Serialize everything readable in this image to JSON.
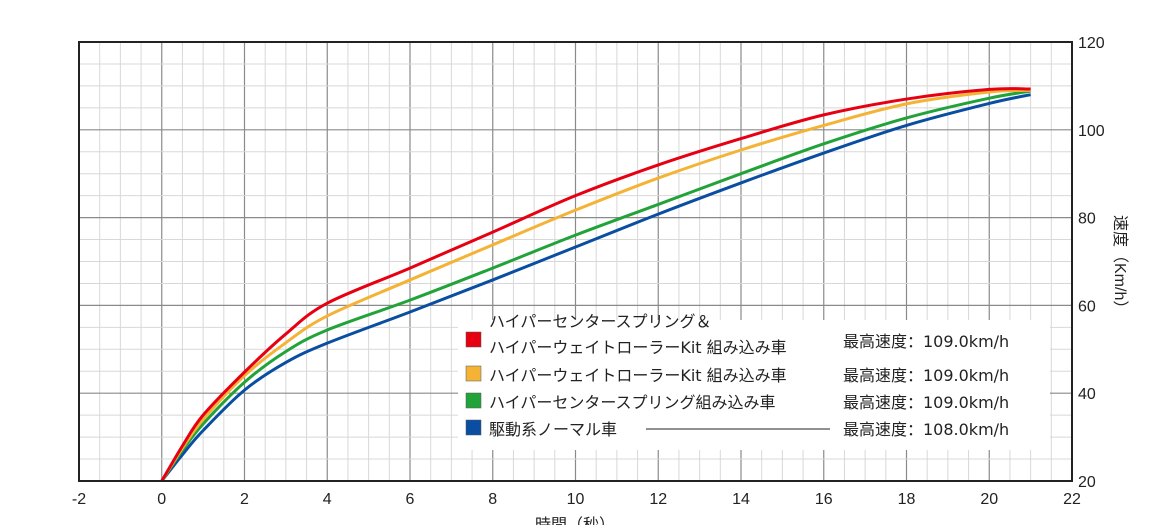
{
  "chart_data": {
    "type": "line",
    "xlabel": "時間（秒）",
    "ylabel": "速度（Km/h）",
    "xlim": [
      -2,
      22
    ],
    "ylim": [
      20,
      120
    ],
    "xticks": [
      -2,
      0,
      2,
      4,
      6,
      8,
      10,
      12,
      14,
      16,
      18,
      20,
      22
    ],
    "yticks": [
      20,
      40,
      60,
      80,
      100,
      120
    ],
    "grid": true,
    "legend_placement": "bottom-right",
    "series": [
      {
        "name_lines": [
          "ハイパーセンタースプリング＆",
          "ハイパーウェイトローラーKit 組み込み車"
        ],
        "max_speed": "最高速度：109.0km/h",
        "color": "#e60012",
        "x": [
          0,
          0.5,
          1,
          2,
          3,
          4,
          6,
          8,
          10,
          12,
          14,
          16,
          18,
          20,
          21
        ],
        "y": [
          20,
          28,
          35,
          44.8,
          53.5,
          60.5,
          68.5,
          76.7,
          85,
          92,
          98,
          103.4,
          107,
          109.2,
          109.3
        ]
      },
      {
        "name_lines": [
          "ハイパーウェイトローラーKit 組み込み車"
        ],
        "max_speed": "最高速度：109.0km/h",
        "color": "#f5b335",
        "x": [
          0,
          0.5,
          1,
          2,
          3,
          4,
          6,
          8,
          10,
          12,
          14,
          16,
          18,
          20,
          21
        ],
        "y": [
          20,
          27.5,
          34,
          44,
          51.5,
          57.6,
          65.8,
          73.8,
          81.7,
          89,
          95.4,
          101,
          105.9,
          108.6,
          109
        ]
      },
      {
        "name_lines": [
          "ハイパーセンタースプリング組み込み車"
        ],
        "max_speed": "最高速度：109.0km/h",
        "color": "#22a33a",
        "x": [
          0,
          0.5,
          1,
          2,
          3,
          4,
          6,
          8,
          10,
          12,
          14,
          16,
          18,
          20,
          21
        ],
        "y": [
          20,
          27,
          33,
          42.5,
          49.5,
          54.4,
          61.2,
          68.5,
          76,
          83,
          90,
          96.8,
          102.7,
          107.2,
          108.8
        ]
      },
      {
        "name_lines": [
          "駆動系ノーマル車"
        ],
        "max_speed": "最高速度：108.0km/h",
        "color": "#0a4ea2",
        "x": [
          0,
          0.5,
          1,
          2,
          3,
          4,
          6,
          8,
          10,
          12,
          14,
          16,
          18,
          20,
          21
        ],
        "y": [
          20,
          26,
          31.5,
          40.7,
          47,
          51.4,
          58.5,
          65.8,
          73.3,
          80.8,
          87.9,
          94.7,
          101,
          106,
          108
        ]
      }
    ]
  }
}
